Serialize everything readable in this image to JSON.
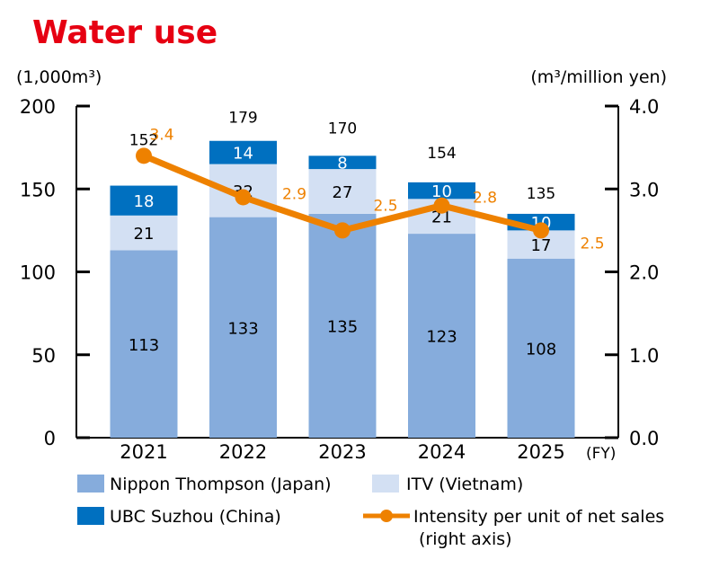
{
  "chart_data": {
    "type": "bar",
    "title": "Water use",
    "ylabel_left": "(1,000m³)",
    "ylabel_right": "(m³/million yen)",
    "xlabel_unit": "(FY)",
    "categories": [
      "2021",
      "2022",
      "2023",
      "2024",
      "2025"
    ],
    "ylim": [
      0,
      200
    ],
    "yticks": [
      "0",
      "50",
      "100",
      "150",
      "200"
    ],
    "ylim_right": [
      0,
      4.0
    ],
    "yticks_right": [
      "0.0",
      "1.0",
      "2.0",
      "3.0",
      "4.0"
    ],
    "stacked": true,
    "series": [
      {
        "name": "Nippon Thompson (Japan)",
        "values": [
          113,
          133,
          135,
          123,
          108
        ],
        "color": "#86acdc",
        "label_color": "#000000"
      },
      {
        "name": "ITV (Vietnam)",
        "values": [
          21,
          32,
          27,
          21,
          17
        ],
        "color": "#d3e0f3",
        "label_color": "#000000"
      },
      {
        "name": "UBC Suzhou (China)",
        "values": [
          18,
          14,
          8,
          10,
          10
        ],
        "color": "#0070c0",
        "label_color": "#ffffff"
      }
    ],
    "totals": [
      152,
      179,
      170,
      154,
      135
    ],
    "line_series": {
      "name": "Intensity per unit of net sales",
      "name_line2": "(right axis)",
      "axis": "right",
      "values": [
        3.4,
        2.9,
        2.5,
        2.8,
        2.5
      ],
      "labels": [
        "3.4",
        "2.9",
        "2.5",
        "2.8",
        "2.5"
      ],
      "color": "#ee8100"
    },
    "title_color": "#e60012",
    "grid": false,
    "legend_position": "bottom"
  }
}
